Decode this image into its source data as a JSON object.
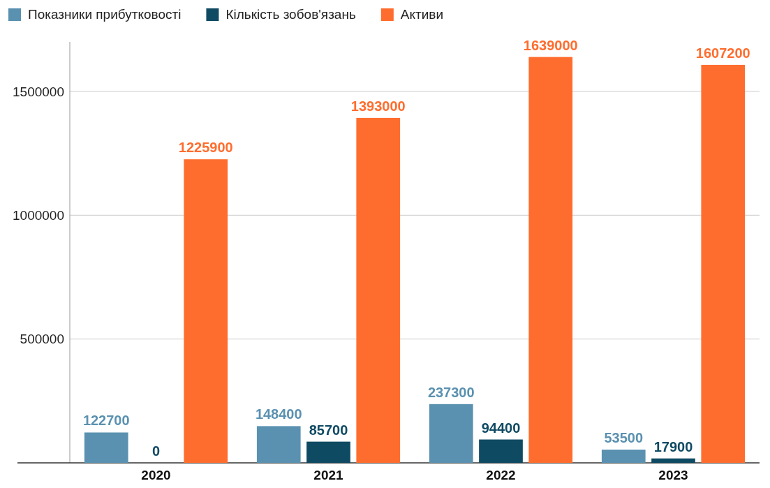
{
  "chart_data": {
    "type": "bar",
    "categories": [
      "2020",
      "2021",
      "2022",
      "2023"
    ],
    "series": [
      {
        "name": "Показники прибутковості",
        "color": "#5a91b0",
        "values": [
          122700,
          148400,
          237300,
          53500
        ]
      },
      {
        "name": "Кількість зобов'язань",
        "color": "#0f4a63",
        "values": [
          0,
          85700,
          94400,
          17900
        ]
      },
      {
        "name": "Активи",
        "color": "#ff6d2e",
        "values": [
          1225900,
          1393000,
          1639000,
          1607200
        ]
      }
    ],
    "ylim": [
      0,
      1700000
    ],
    "yticks": [
      500000,
      1000000,
      1500000
    ],
    "grid": "y",
    "legend": "top left",
    "data_labels": true
  }
}
